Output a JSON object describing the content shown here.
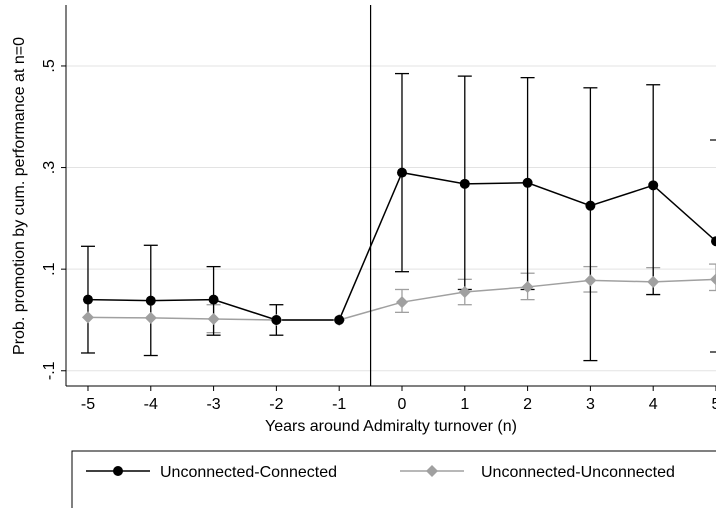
{
  "chart_data": {
    "type": "line",
    "xlabel": "Years around Admiralty turnover (n)",
    "ylabel": "Prob. promotion by cum. performance at n=0",
    "x": [
      -5,
      -4,
      -3,
      -2,
      -1,
      0,
      1,
      2,
      3,
      4,
      5
    ],
    "x_tick_labels": [
      "-5",
      "-4",
      "-3",
      "-2",
      "-1",
      "0",
      "1",
      "2",
      "3",
      "4",
      "5"
    ],
    "y_ticks": [
      -0.1,
      0.1,
      0.3,
      0.5
    ],
    "y_tick_labels": [
      "-.1",
      ".1",
      ".3",
      ".5"
    ],
    "xlim": [
      -5.35,
      5.0
    ],
    "ylim": [
      -0.13,
      0.62
    ],
    "vline_x": -0.5,
    "grid": true,
    "legend_position": "bottom",
    "series": [
      {
        "name": "Unconnected-Connected",
        "color": "#000000",
        "marker": "circle",
        "values": [
          0.04,
          0.038,
          0.04,
          0.0,
          0.0,
          0.29,
          0.268,
          0.27,
          0.225,
          0.265,
          0.155
        ],
        "lower": [
          -0.065,
          -0.07,
          -0.03,
          -0.03,
          0.0,
          0.095,
          0.06,
          0.06,
          -0.08,
          0.05,
          null
        ],
        "upper": [
          0.145,
          0.147,
          0.105,
          0.03,
          0.0,
          0.485,
          0.48,
          0.477,
          0.457,
          0.463,
          null
        ]
      },
      {
        "name": "Unconnected-Unconnected",
        "color": "#a0a0a0",
        "marker": "diamond",
        "values": [
          0.005,
          0.004,
          0.002,
          0.0,
          0.0,
          0.035,
          0.055,
          0.065,
          0.078,
          0.075,
          0.08
        ],
        "lower": [
          0.005,
          0.004,
          -0.025,
          0.0,
          0.0,
          0.015,
          0.03,
          0.04,
          0.055,
          0.05,
          0.058
        ],
        "upper": [
          0.005,
          0.004,
          0.03,
          0.0,
          0.0,
          0.06,
          0.08,
          0.092,
          0.105,
          0.103,
          0.11
        ]
      }
    ]
  }
}
